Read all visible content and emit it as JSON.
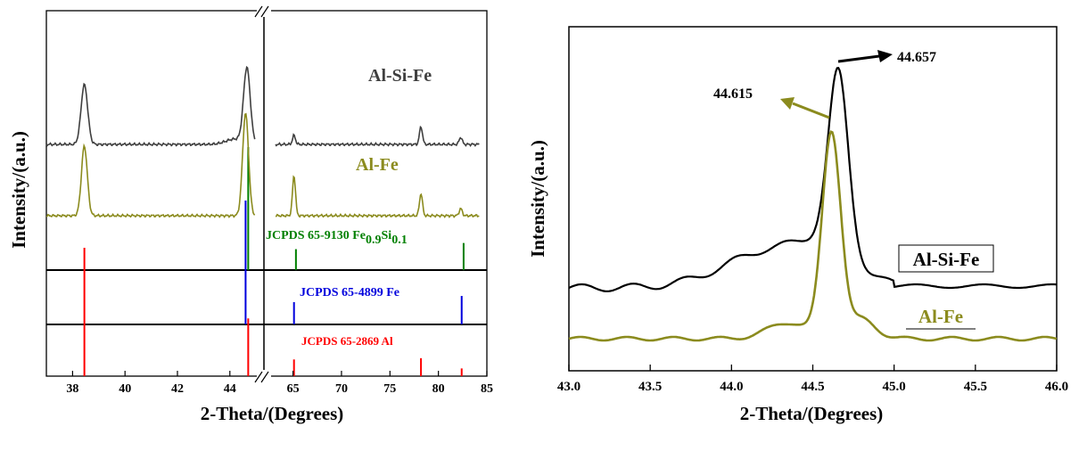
{
  "chart_data": [
    {
      "type": "line",
      "panel": "left",
      "xlabel": "2-Theta/(Degrees)",
      "ylabel": "Intensity/(a.u.)",
      "x_segments": [
        {
          "xlim": [
            37,
            45.3
          ],
          "ticks": [
            38,
            40,
            42,
            44
          ]
        },
        {
          "xlim": [
            62,
            85
          ],
          "ticks": [
            65,
            70,
            75,
            80,
            85
          ]
        }
      ],
      "axis_break": "//",
      "series": [
        {
          "name": "Al-Si-Fe",
          "color": "#3f3f3f",
          "peaks": [
            {
              "x": 38.45,
              "h": 67
            },
            {
              "x": 44.65,
              "h": 84
            },
            {
              "x": 65.1,
              "h": 10
            },
            {
              "x": 78.2,
              "h": 20
            },
            {
              "x": 82.3,
              "h": 8
            }
          ]
        },
        {
          "name": "Al-Fe",
          "color": "#8b8b1e",
          "peaks": [
            {
              "x": 38.45,
              "h": 78
            },
            {
              "x": 44.6,
              "h": 115
            },
            {
              "x": 65.1,
              "h": 45
            },
            {
              "x": 78.2,
              "h": 25
            },
            {
              "x": 82.3,
              "h": 8
            }
          ]
        }
      ],
      "references": [
        {
          "name": "JCPDS 65-9130 Fe0.9Si0.1",
          "label": "JCPDS 65-9130 Fe",
          "sub1": "0.9",
          "mid": "Si",
          "sub2": "0.1",
          "color": "#008000",
          "lines": [
            {
              "x": 44.7,
              "h": 1.0
            },
            {
              "x": 65.3,
              "h": 0.17
            },
            {
              "x": 82.6,
              "h": 0.22
            }
          ]
        },
        {
          "name": "JCPDS 65-4899 Fe",
          "label": "JCPDS 65-4899 Fe",
          "color": "#0000dd",
          "lines": [
            {
              "x": 44.6,
              "h": 1.0
            },
            {
              "x": 65.1,
              "h": 0.18
            },
            {
              "x": 82.4,
              "h": 0.23
            }
          ]
        },
        {
          "name": "JCPDS 65-2869 Al",
          "label": "JCPDS 65-2869 Al",
          "color": "#ff0000",
          "lines": [
            {
              "x": 38.45,
              "h": 1.0
            },
            {
              "x": 44.7,
              "h": 0.45
            },
            {
              "x": 65.1,
              "h": 0.13
            },
            {
              "x": 78.2,
              "h": 0.14
            },
            {
              "x": 82.4,
              "h": 0.06
            }
          ]
        }
      ]
    },
    {
      "type": "line",
      "panel": "right",
      "xlabel": "2-Theta/(Degrees)",
      "ylabel": "Intensity/(a.u.)",
      "xlim": [
        43.0,
        46.0
      ],
      "xticks": [
        43.0,
        43.5,
        44.0,
        44.5,
        45.0,
        45.5,
        46.0
      ],
      "xtick_labels": [
        "43.0",
        "43.5",
        "44.0",
        "44.5",
        "45.0",
        "45.5",
        "46.0"
      ],
      "series": [
        {
          "name": "Al-Si-Fe",
          "color": "#000000",
          "peak_x": 44.657,
          "peak_label": "44.657"
        },
        {
          "name": "Al-Fe",
          "color": "#8b8b1e",
          "peak_x": 44.615,
          "peak_label": "44.615"
        }
      ]
    }
  ]
}
